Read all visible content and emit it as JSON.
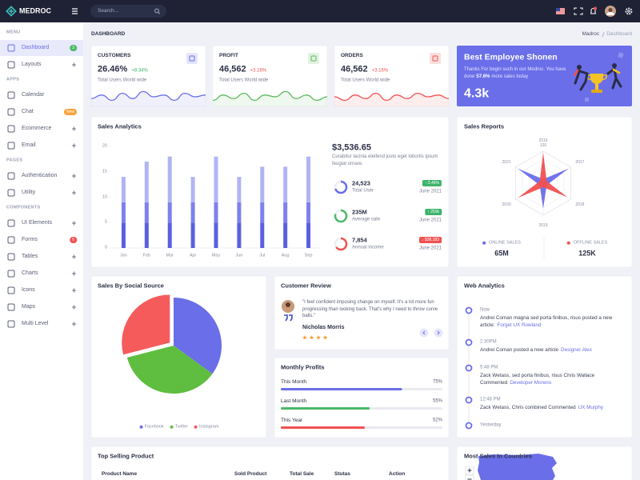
{
  "topbar": {
    "brand": "MEDROC",
    "search_placeholder": "Search..."
  },
  "sidebar": [
    {
      "title": "MENU",
      "items": [
        {
          "label": "Dashboard",
          "badge": "3",
          "badge_color": "#4cb86a",
          "active": true
        },
        {
          "label": "Layouts",
          "expandable": true
        }
      ]
    },
    {
      "title": "APPS",
      "items": [
        {
          "label": "Calendar"
        },
        {
          "label": "Chat",
          "badge": "New",
          "badge_color": "#f7a23b"
        },
        {
          "label": "Ecommerce",
          "expandable": true
        },
        {
          "label": "Email",
          "expandable": true
        }
      ]
    },
    {
      "title": "PAGES",
      "items": [
        {
          "label": "Authentication",
          "expandable": true
        },
        {
          "label": "Utility",
          "expandable": true
        }
      ]
    },
    {
      "title": "COMPONENTS",
      "items": [
        {
          "label": "UI Elements",
          "expandable": true
        },
        {
          "label": "Forms",
          "badge": "6",
          "badge_color": "#f15050"
        },
        {
          "label": "Tables",
          "expandable": true
        },
        {
          "label": "Charts",
          "expandable": true
        },
        {
          "label": "Icons",
          "expandable": true
        },
        {
          "label": "Maps",
          "expandable": true
        },
        {
          "label": "Multi Level",
          "expandable": true
        }
      ]
    }
  ],
  "breadcrumb": {
    "title": "DASHBOARD",
    "path": [
      "Madroc",
      "Dashboard"
    ]
  },
  "stats": [
    {
      "title": "CUSTOMERS",
      "value": "26.46%",
      "change": "+8.34%",
      "change_color": "#3db36b",
      "caption": "Total Users World wide",
      "color": "#6a6ee8",
      "spark": {
        "type": "line",
        "values": [
          4,
          6,
          3,
          7,
          4,
          8,
          5,
          6,
          3,
          7,
          5,
          6
        ],
        "ylim": [
          0,
          10
        ]
      }
    },
    {
      "title": "PROFIT",
      "value": "46,562",
      "change": "+3.16%",
      "change_color": "#f15050",
      "caption": "Total Users World wide",
      "color": "#5cb85c",
      "spark": {
        "type": "line",
        "values": [
          3,
          6,
          4,
          7,
          3,
          6,
          5,
          8,
          4,
          6,
          3,
          5
        ],
        "ylim": [
          0,
          10
        ]
      }
    },
    {
      "title": "ORDERS",
      "value": "46,562",
      "change": "+3.16%",
      "change_color": "#f15050",
      "caption": "Total Users World wide",
      "color": "#f15050",
      "spark": {
        "type": "line",
        "values": [
          5,
          3,
          6,
          4,
          7,
          3,
          6,
          4,
          7,
          5,
          6,
          4
        ],
        "ylim": [
          0,
          10
        ]
      }
    }
  ],
  "employee": {
    "title": "Best Employee Shonen",
    "text_before": "Thanks For begin such in our Medroc. You have done",
    "highlight": "57.6%",
    "text_after": "more sales today",
    "value": "4.3k"
  },
  "sales_analytics": {
    "title": "Sales Analytics",
    "chart": {
      "type": "bar",
      "stacked": true,
      "categories": [
        "Jan",
        "Feb",
        "Mar",
        "Apr",
        "May",
        "Jun",
        "Jul",
        "Aug",
        "Sep"
      ],
      "series": [
        {
          "color": "#5a5fe0",
          "values": [
            5,
            5,
            5,
            5,
            5,
            5,
            5,
            5,
            5
          ]
        },
        {
          "color": "#7d81ec",
          "values": [
            4,
            4,
            4,
            4,
            4,
            4,
            4,
            4,
            4
          ]
        },
        {
          "color": "#b1b4f4",
          "values": [
            5,
            8,
            9,
            5,
            9,
            5,
            7,
            7,
            9
          ]
        }
      ],
      "ylim": [
        0,
        20
      ],
      "yticks": [
        0,
        5,
        10,
        15,
        20
      ]
    },
    "summary": {
      "amount": "$3,536.65",
      "text": "Curabitur lacinia eleifend justo eget lobortis ipsum feugiat ornare.",
      "ring_lim": [
        0,
        100
      ],
      "items": [
        {
          "value": "24,523",
          "label": "Total User",
          "badge": "↑ 3.46%",
          "badge_color": "#3db36b",
          "date": "June 2021",
          "ring": 70,
          "color": "#6a6ee8"
        },
        {
          "value": "235M",
          "label": "Average sale",
          "badge": "↑ 250k",
          "badge_color": "#3db36b",
          "date": "June 2021",
          "ring": 80,
          "color": "#4cb86a"
        },
        {
          "value": "7,854",
          "label": "Annual income",
          "badge": "↓ $38,183",
          "badge_color": "#f15050",
          "date": "June 2021",
          "ring": 65,
          "color": "#f15050"
        }
      ]
    }
  },
  "sales_reports": {
    "title": "Sales Reports",
    "chart": {
      "type": "radar",
      "categories": [
        "2016",
        "2017",
        "2018",
        "2019",
        "2020",
        "2021"
      ],
      "rlim": [
        0,
        120
      ],
      "rticks": [
        120
      ],
      "series": [
        {
          "name": "ONLINE SALES",
          "total": "65M",
          "color": "#6a6ee8",
          "values": [
            15,
            110,
            15,
            95,
            15,
            110
          ]
        },
        {
          "name": "OFFLINE SALES",
          "total": "125K",
          "color": "#f15050",
          "values": [
            115,
            15,
            105,
            15,
            110,
            15
          ]
        }
      ]
    }
  },
  "social": {
    "title": "Sales By Social Source",
    "chart": {
      "type": "pie",
      "categories": [
        "Facebook",
        "Twitter",
        "Instagram"
      ],
      "values": [
        35,
        36,
        29
      ],
      "colors": [
        "#6a6ee8",
        "#5fbd3f",
        "#f55b5b"
      ],
      "explode": [
        0,
        0,
        1
      ]
    }
  },
  "review": {
    "title": "Customer Review",
    "quote": "\"I feel confident imposing change on myself. It's a lot more fun progressing than looking back. That's why I need to throw curve balls.\"",
    "name": "Nicholas Morris",
    "rating": 4
  },
  "profits": {
    "title": "Monthly Profits",
    "chart": {
      "type": "bar",
      "orientation": "horizontal",
      "categories": [
        "This Month",
        "Last Month",
        "This Year"
      ],
      "values": [
        75,
        55,
        52
      ],
      "value_labels": [
        "75%",
        "55%",
        "52%"
      ],
      "colors": [
        "#6a6ee8",
        "#4cb86a",
        "#f15050"
      ],
      "xlim": [
        0,
        100
      ]
    }
  },
  "web_analytics": {
    "title": "Web Analytics",
    "events": [
      {
        "time": "Now",
        "text": "Andrei Coman magna sed porta finibus, risus posted a new article:",
        "link": "Forget UX Rowland"
      },
      {
        "time": "2:30PM",
        "text": "Andrei Coman posted a new article",
        "link": "Designer Alex"
      },
      {
        "time": "5:48 PM",
        "text": "Zack Wetass, sed porta finibus, risus Chris Wallace Commented",
        "link": "Developer Moreno"
      },
      {
        "time": "12:48 PM",
        "text": "Zack Wetass, Chris combined Commented",
        "link": "UX Murphy"
      },
      {
        "time": "Yesterday"
      }
    ]
  },
  "top_selling": {
    "title": "Top Selling Product",
    "columns": [
      "Product Name",
      "Sold Product",
      "Total Sale",
      "Stutas",
      "Action"
    ]
  },
  "countries": {
    "title": "Most Sales In Countries"
  }
}
